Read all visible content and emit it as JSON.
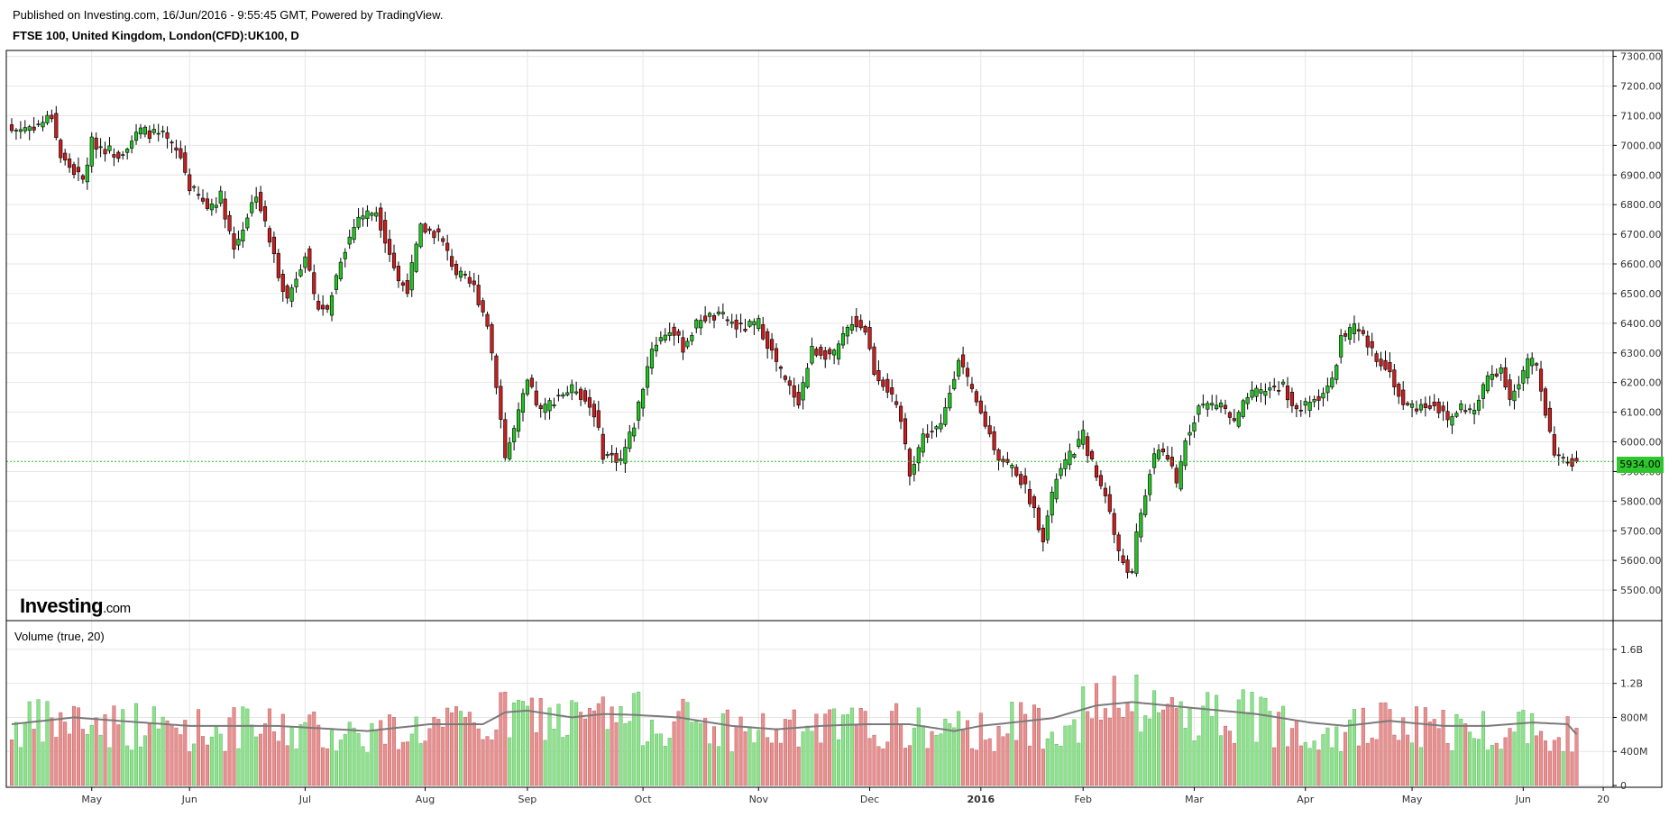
{
  "header": {
    "published": "Published on Investing.com, 16/Jun/2016 - 9:55:45 GMT, Powered by TradingView.",
    "symbol": "FTSE 100, United Kingdom, London(CFD):UK100, D"
  },
  "logo": {
    "brand": "Investing",
    "suffix": ".com"
  },
  "volume_title": "Volume (true, 20)",
  "last_price_label": "5934.00",
  "colors": {
    "up": "#22c322",
    "down": "#c81e1e",
    "up_vol": "#8ee28e",
    "down_vol": "#e89090",
    "grid": "#e6e6e6",
    "last_line": "#22c322",
    "ma": "#7a7a7a"
  },
  "chart_data": {
    "type": "candlestick",
    "title": "FTSE 100, United Kingdom, London(CFD):UK100, D",
    "price_axis": {
      "range": [
        5400,
        7320
      ],
      "ticks": [
        "7300.00",
        "7200.00",
        "7100.00",
        "7000.00",
        "6900.00",
        "6800.00",
        "6700.00",
        "6600.00",
        "6500.00",
        "6400.00",
        "6300.00",
        "6200.00",
        "6100.00",
        "6000.00",
        "5900.00",
        "5800.00",
        "5700.00",
        "5600.00",
        "5500.00"
      ]
    },
    "volume_axis": {
      "range": [
        0,
        1800000000
      ],
      "ticks": [
        {
          "label": "1.6B",
          "value": 1600000000
        },
        {
          "label": "1.2B",
          "value": 1200000000
        },
        {
          "label": "800M",
          "value": 800000000
        },
        {
          "label": "400M",
          "value": 400000000
        },
        {
          "label": "0",
          "value": 0
        }
      ]
    },
    "x_axis_labels": [
      {
        "label": "May",
        "day": 18
      },
      {
        "label": "Jun",
        "day": 40
      },
      {
        "label": "Jul",
        "day": 66
      },
      {
        "label": "Aug",
        "day": 93
      },
      {
        "label": "Sep",
        "day": 116
      },
      {
        "label": "Oct",
        "day": 142
      },
      {
        "label": "Nov",
        "day": 168
      },
      {
        "label": "Dec",
        "day": 193
      },
      {
        "label": "2016",
        "day": 218
      },
      {
        "label": "Feb",
        "day": 241
      },
      {
        "label": "Mar",
        "day": 266
      },
      {
        "label": "Apr",
        "day": 291
      },
      {
        "label": "May",
        "day": 315
      },
      {
        "label": "Jun",
        "day": 340
      },
      {
        "label": "20",
        "day": 358
      }
    ],
    "total_days": 360,
    "anchors": [
      [
        0,
        7050
      ],
      [
        6,
        7070
      ],
      [
        9,
        7100
      ],
      [
        11,
        6960
      ],
      [
        16,
        6880
      ],
      [
        18,
        7010
      ],
      [
        24,
        6970
      ],
      [
        29,
        7050
      ],
      [
        34,
        7030
      ],
      [
        38,
        6960
      ],
      [
        40,
        6860
      ],
      [
        44,
        6790
      ],
      [
        47,
        6830
      ],
      [
        50,
        6650
      ],
      [
        55,
        6840
      ],
      [
        60,
        6570
      ],
      [
        62,
        6480
      ],
      [
        66,
        6640
      ],
      [
        68,
        6480
      ],
      [
        71,
        6440
      ],
      [
        74,
        6620
      ],
      [
        78,
        6760
      ],
      [
        82,
        6780
      ],
      [
        85,
        6640
      ],
      [
        87,
        6540
      ],
      [
        89,
        6520
      ],
      [
        92,
        6720
      ],
      [
        96,
        6700
      ],
      [
        100,
        6570
      ],
      [
        104,
        6520
      ],
      [
        107,
        6400
      ],
      [
        109,
        6200
      ],
      [
        111,
        5950
      ],
      [
        113,
        6040
      ],
      [
        116,
        6200
      ],
      [
        119,
        6100
      ],
      [
        123,
        6160
      ],
      [
        127,
        6180
      ],
      [
        131,
        6100
      ],
      [
        133,
        5960
      ],
      [
        137,
        5940
      ],
      [
        140,
        6060
      ],
      [
        144,
        6320
      ],
      [
        148,
        6380
      ],
      [
        151,
        6320
      ],
      [
        155,
        6420
      ],
      [
        160,
        6420
      ],
      [
        164,
        6380
      ],
      [
        168,
        6400
      ],
      [
        171,
        6300
      ],
      [
        174,
        6200
      ],
      [
        177,
        6140
      ],
      [
        180,
        6310
      ],
      [
        185,
        6290
      ],
      [
        189,
        6410
      ],
      [
        192,
        6380
      ],
      [
        194,
        6240
      ],
      [
        197,
        6180
      ],
      [
        200,
        6070
      ],
      [
        202,
        5900
      ],
      [
        205,
        6020
      ],
      [
        209,
        6050
      ],
      [
        213,
        6290
      ],
      [
        216,
        6160
      ],
      [
        219,
        6060
      ],
      [
        222,
        5950
      ],
      [
        226,
        5900
      ],
      [
        229,
        5810
      ],
      [
        232,
        5680
      ],
      [
        235,
        5880
      ],
      [
        238,
        5950
      ],
      [
        241,
        6020
      ],
      [
        244,
        5880
      ],
      [
        246,
        5830
      ],
      [
        249,
        5620
      ],
      [
        252,
        5550
      ],
      [
        253,
        5680
      ],
      [
        256,
        5900
      ],
      [
        258,
        5980
      ],
      [
        260,
        5950
      ],
      [
        262,
        5850
      ],
      [
        264,
        6010
      ],
      [
        267,
        6120
      ],
      [
        272,
        6130
      ],
      [
        275,
        6060
      ],
      [
        278,
        6150
      ],
      [
        283,
        6180
      ],
      [
        286,
        6190
      ],
      [
        289,
        6100
      ],
      [
        292,
        6130
      ],
      [
        295,
        6170
      ],
      [
        297,
        6200
      ],
      [
        299,
        6350
      ],
      [
        302,
        6380
      ],
      [
        304,
        6350
      ],
      [
        306,
        6300
      ],
      [
        309,
        6260
      ],
      [
        311,
        6200
      ],
      [
        313,
        6120
      ],
      [
        317,
        6120
      ],
      [
        320,
        6130
      ],
      [
        323,
        6070
      ],
      [
        326,
        6120
      ],
      [
        329,
        6100
      ],
      [
        332,
        6220
      ],
      [
        335,
        6250
      ],
      [
        337,
        6150
      ],
      [
        339,
        6190
      ],
      [
        341,
        6270
      ],
      [
        343,
        6260
      ],
      [
        345,
        6100
      ],
      [
        347,
        5970
      ],
      [
        349,
        5930
      ],
      [
        352,
        5934
      ]
    ],
    "volume_anchors": [
      [
        0,
        720000000
      ],
      [
        14,
        800000000
      ],
      [
        24,
        760000000
      ],
      [
        40,
        700000000
      ],
      [
        60,
        700000000
      ],
      [
        80,
        640000000
      ],
      [
        94,
        720000000
      ],
      [
        106,
        720000000
      ],
      [
        111,
        860000000
      ],
      [
        116,
        880000000
      ],
      [
        126,
        800000000
      ],
      [
        133,
        840000000
      ],
      [
        140,
        830000000
      ],
      [
        150,
        800000000
      ],
      [
        162,
        700000000
      ],
      [
        172,
        660000000
      ],
      [
        182,
        700000000
      ],
      [
        192,
        720000000
      ],
      [
        202,
        720000000
      ],
      [
        212,
        640000000
      ],
      [
        218,
        700000000
      ],
      [
        225,
        740000000
      ],
      [
        234,
        790000000
      ],
      [
        244,
        940000000
      ],
      [
        252,
        980000000
      ],
      [
        260,
        940000000
      ],
      [
        268,
        900000000
      ],
      [
        280,
        840000000
      ],
      [
        292,
        740000000
      ],
      [
        300,
        700000000
      ],
      [
        310,
        760000000
      ],
      [
        322,
        700000000
      ],
      [
        332,
        700000000
      ],
      [
        342,
        740000000
      ],
      [
        350,
        720000000
      ],
      [
        352,
        600000000
      ]
    ]
  }
}
